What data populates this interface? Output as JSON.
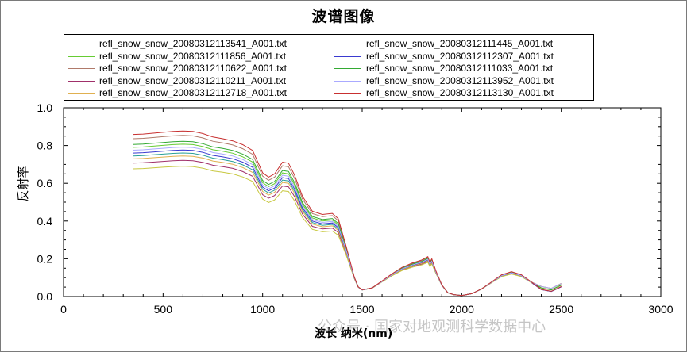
{
  "chart_data": {
    "type": "line",
    "title": "波谱图像",
    "xlabel": "波长 纳米(nm)",
    "ylabel": "反射率",
    "xlim": [
      0,
      3000
    ],
    "ylim": [
      0,
      1.0
    ],
    "xticks": [
      "0",
      "500",
      "1000",
      "1500",
      "2000",
      "2500",
      "3000"
    ],
    "yticks": [
      "0.0",
      "0.2",
      "0.4",
      "0.6",
      "0.8",
      "1.0"
    ],
    "grid": false,
    "legend_position": "top",
    "series": [
      {
        "name": "refl_snow_snow_20080312113541_A001.txt",
        "color": "#2aa198",
        "scale": 0.98
      },
      {
        "name": "refl_snow_snow_20080312111856_A001.txt",
        "color": "#66cc33",
        "scale": 1.04
      },
      {
        "name": "refl_snow_snow_20080312110622_A001.txt",
        "color": "#b07a6a",
        "scale": 1.1
      },
      {
        "name": "refl_snow_snow_20080312110211_A001.txt",
        "color": "#a0306a",
        "scale": 0.93
      },
      {
        "name": "refl_snow_snow_20080312112718_A001.txt",
        "color": "#e0b050",
        "scale": 0.96
      },
      {
        "name": "refl_snow_snow_20080312111445_A001.txt",
        "color": "#c8c840",
        "scale": 0.89
      },
      {
        "name": "refl_snow_snow_20080312112307_A001.txt",
        "color": "#3a3ad0",
        "scale": 1.0
      },
      {
        "name": "refl_snow_snow_20080312111033_A001.txt",
        "color": "#33aa33",
        "scale": 1.06
      },
      {
        "name": "refl_snow_snow_20080312113952_A001.txt",
        "color": "#aaaaff",
        "scale": 1.02
      },
      {
        "name": "refl_snow_snow_20080312113130_A001.txt",
        "color": "#c83030",
        "scale": 1.13
      }
    ],
    "base_curve": {
      "x": [
        350,
        400,
        450,
        500,
        550,
        600,
        650,
        700,
        750,
        800,
        850,
        900,
        950,
        1000,
        1030,
        1060,
        1100,
        1130,
        1160,
        1200,
        1250,
        1300,
        1350,
        1380,
        1420,
        1460,
        1480,
        1500,
        1550,
        1600,
        1650,
        1700,
        1750,
        1800,
        1830,
        1840,
        1850,
        1870,
        1900,
        1930,
        1960,
        2000,
        2050,
        2100,
        2150,
        2200,
        2250,
        2300,
        2350,
        2400,
        2450,
        2500
      ],
      "y": [
        0.76,
        0.762,
        0.766,
        0.77,
        0.774,
        0.776,
        0.774,
        0.764,
        0.748,
        0.74,
        0.73,
        0.712,
        0.685,
        0.58,
        0.56,
        0.575,
        0.63,
        0.625,
        0.57,
        0.47,
        0.4,
        0.385,
        0.39,
        0.365,
        0.24,
        0.1,
        0.05,
        0.035,
        0.045,
        0.08,
        0.115,
        0.145,
        0.165,
        0.18,
        0.195,
        0.17,
        0.185,
        0.13,
        0.06,
        0.02,
        0.01,
        0.005,
        0.015,
        0.04,
        0.075,
        0.11,
        0.125,
        0.11,
        0.075,
        0.045,
        0.035,
        0.06
      ]
    }
  },
  "watermark": "公众号 · 国家对地观测科学数据中心"
}
